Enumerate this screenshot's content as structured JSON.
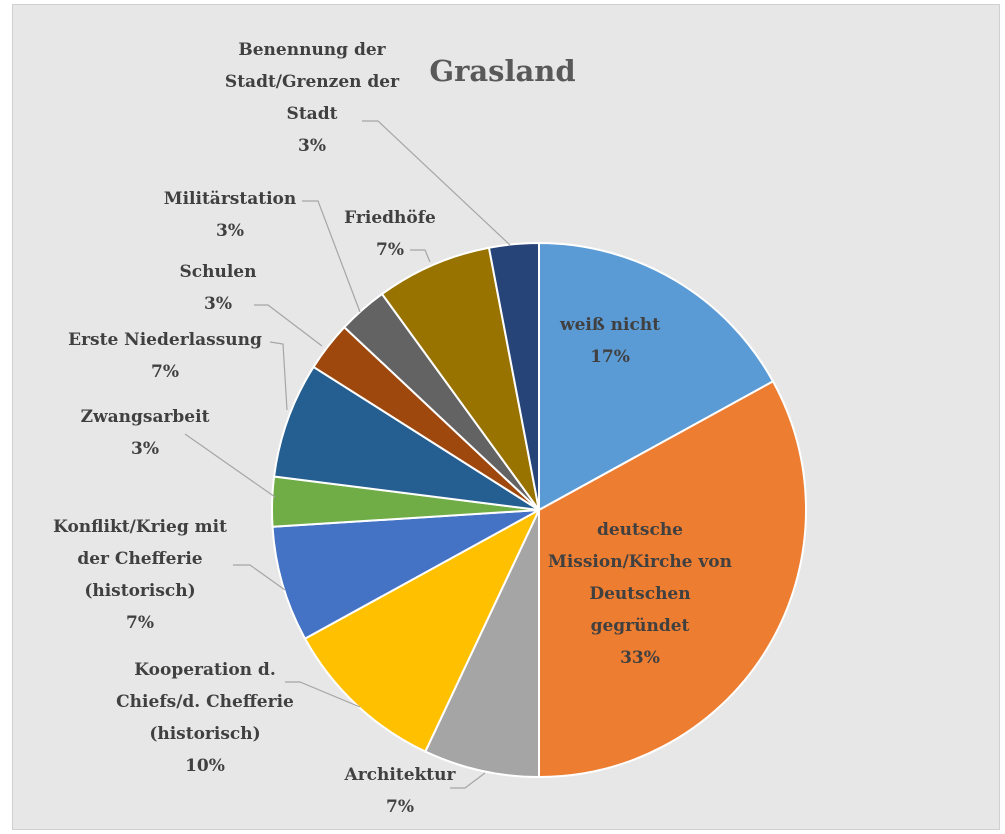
{
  "chart_data": {
    "type": "pie",
    "title": "Grasland",
    "categories": [
      "weiß nicht",
      "deutsche Mission/Kirche von Deutschen gegründet",
      "Architektur",
      "Kooperation d. Chiefs/d. Chefferie (historisch)",
      "Konflikt/Krieg mit der Chefferie (historisch)",
      "Zwangsarbeit",
      "Erste Niederlassung",
      "Schulen",
      "Militärstation",
      "Friedhöfe",
      "Benennung der Stadt/Grenzen der Stadt"
    ],
    "values": [
      17,
      33,
      7,
      10,
      7,
      3,
      7,
      3,
      3,
      7,
      3
    ],
    "value_labels": [
      "17%",
      "33%",
      "7%",
      "10%",
      "7%",
      "3%",
      "7%",
      "3%",
      "3%",
      "7%",
      "3%"
    ],
    "colors": [
      "#5b9bd5",
      "#ed7d31",
      "#a5a5a5",
      "#ffc000",
      "#4472c4",
      "#70ad47",
      "#255e91",
      "#9e480e",
      "#636363",
      "#997300",
      "#264478"
    ]
  }
}
